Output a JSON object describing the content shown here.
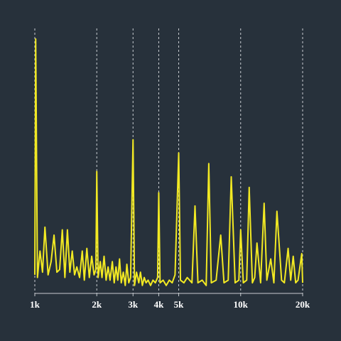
{
  "chart_data": {
    "type": "line",
    "xscale": "log",
    "xlim": [
      1000,
      20000
    ],
    "ylim": [
      0,
      100
    ],
    "grid": true,
    "color": "#f2e923",
    "xticks": [
      {
        "value": 1000,
        "label": "1k"
      },
      {
        "value": 2000,
        "label": "2k"
      },
      {
        "value": 3000,
        "label": "3k"
      },
      {
        "value": 4000,
        "label": "4k"
      },
      {
        "value": 5000,
        "label": "5k"
      },
      {
        "value": 10000,
        "label": "10k"
      },
      {
        "value": 20000,
        "label": "20k"
      }
    ],
    "x": [
      1000,
      1010,
      1030,
      1060,
      1090,
      1120,
      1160,
      1200,
      1240,
      1280,
      1320,
      1360,
      1400,
      1440,
      1480,
      1520,
      1560,
      1600,
      1650,
      1700,
      1740,
      1790,
      1840,
      1890,
      1940,
      1980,
      2000,
      2030,
      2080,
      2120,
      2170,
      2220,
      2270,
      2320,
      2380,
      2430,
      2480,
      2530,
      2580,
      2630,
      2690,
      2750,
      2800,
      2860,
      2920,
      3000,
      3050,
      3120,
      3200,
      3260,
      3330,
      3400,
      3470,
      3550,
      3650,
      3750,
      3850,
      3950,
      4000,
      4060,
      4200,
      4350,
      4500,
      4650,
      4800,
      5000,
      5100,
      5300,
      5500,
      5800,
      6000,
      6200,
      6500,
      6800,
      7000,
      7200,
      7600,
      8000,
      8300,
      8700,
      9000,
      9400,
      9800,
      10000,
      10300,
      10700,
      11000,
      11400,
      11700,
      12000,
      12500,
      13000,
      13400,
      14000,
      14500,
      15000,
      15800,
      16300,
      17000,
      17500,
      18000,
      18500,
      19000,
      19800,
      20000
    ],
    "values": [
      7,
      96,
      6,
      16,
      8,
      25,
      7,
      12,
      22,
      8,
      9,
      24,
      6,
      24,
      8,
      16,
      7,
      10,
      6,
      16,
      5,
      17,
      6,
      14,
      7,
      9,
      46,
      6,
      12,
      6,
      14,
      5,
      10,
      5,
      12,
      4,
      10,
      5,
      13,
      4,
      8,
      3,
      11,
      4,
      6,
      58,
      3,
      8,
      4,
      8,
      3,
      6,
      4,
      5,
      3,
      5,
      4,
      6,
      38,
      4,
      5,
      3,
      5,
      4,
      7,
      53,
      5,
      4,
      6,
      4,
      33,
      4,
      5,
      3,
      49,
      4,
      5,
      22,
      4,
      5,
      44,
      4,
      5,
      24,
      4,
      5,
      40,
      4,
      6,
      19,
      4,
      34,
      5,
      13,
      4,
      31,
      5,
      4,
      17,
      5,
      14,
      4,
      5,
      15,
      4
    ]
  }
}
